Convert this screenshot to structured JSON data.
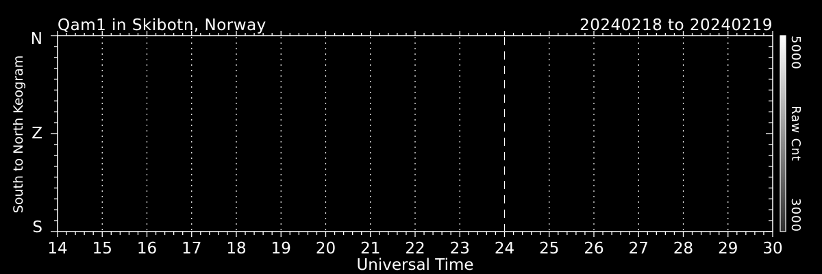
{
  "window": {
    "background_color": "#000000",
    "foreground_color": "#ffffff"
  },
  "chart_data": {
    "type": "heatmap",
    "title": "Qam1 in Skibotn, Norway",
    "date_range": "20240218 to 20240219",
    "xlabel": "Universal Time",
    "ylabel": "South to North Keogram",
    "xlim": [
      14,
      30
    ],
    "x_tick_labels": [
      "14",
      "15",
      "16",
      "17",
      "18",
      "19",
      "20",
      "21",
      "22",
      "23",
      "24",
      "25",
      "26",
      "27",
      "28",
      "29",
      "30"
    ],
    "x_minor_divisions": 5,
    "y_tick_labels": [
      "N",
      "Z",
      "S"
    ],
    "y_minor_divisions_per_major": 9,
    "grid": {
      "style": "dotted-vertical",
      "gridline_hours": [
        15,
        16,
        17,
        18,
        19,
        20,
        21,
        22,
        23,
        24,
        25,
        26,
        27,
        28,
        29
      ],
      "dashed_line_hour": 24
    },
    "heatmap_content": "uniform black (no counts rendered above background)",
    "plot_background": "#000000",
    "line_color": "#ffffff",
    "colorbar": {
      "label": "Raw Cnt",
      "min": 3000,
      "max": 5000,
      "min_label": "3000",
      "max_label": "5000",
      "gradient_top": "#ffffff",
      "gradient_bottom": "#2e2e2e",
      "orientation": "vertical-right"
    }
  }
}
